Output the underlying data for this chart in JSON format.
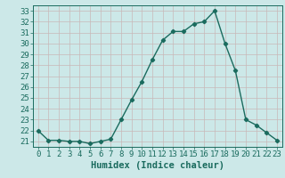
{
  "x": [
    0,
    1,
    2,
    3,
    4,
    5,
    6,
    7,
    8,
    9,
    10,
    11,
    12,
    13,
    14,
    15,
    16,
    17,
    18,
    19,
    20,
    21,
    22,
    23
  ],
  "y": [
    22,
    21.1,
    21.1,
    21,
    21,
    20.8,
    21,
    21.2,
    23,
    24.8,
    26.5,
    28.5,
    30.3,
    31.1,
    31.1,
    31.8,
    32,
    33,
    30,
    27.5,
    23,
    22.5,
    21.8,
    21.1
  ],
  "line_color": "#1a6b5e",
  "marker": "D",
  "marker_size": 2.2,
  "bg_color": "#cce8e8",
  "grid_color": "#c8b8b8",
  "xlabel": "Humidex (Indice chaleur)",
  "ylim": [
    20.5,
    33.5
  ],
  "xlim": [
    -0.5,
    23.5
  ],
  "yticks": [
    21,
    22,
    23,
    24,
    25,
    26,
    27,
    28,
    29,
    30,
    31,
    32,
    33
  ],
  "xticks": [
    0,
    1,
    2,
    3,
    4,
    5,
    6,
    7,
    8,
    9,
    10,
    11,
    12,
    13,
    14,
    15,
    16,
    17,
    18,
    19,
    20,
    21,
    22,
    23
  ],
  "xlabel_fontsize": 7.5,
  "tick_fontsize": 6.5,
  "linewidth": 1.0
}
